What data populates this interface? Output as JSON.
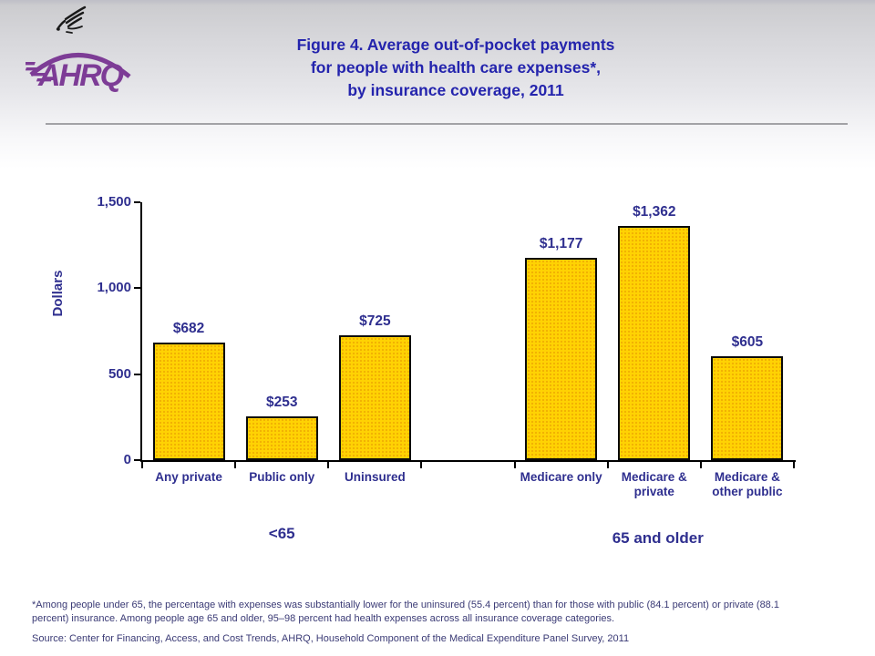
{
  "header": {
    "org_abbrev": "AHRQ",
    "title_lines": [
      "Figure 4. Average out-of-pocket payments",
      "for people with health care expenses*,",
      "by insurance coverage, 2011"
    ]
  },
  "chart_data": {
    "type": "bar",
    "title": "Figure 4. Average out-of-pocket payments for people with health care expenses*, by insurance coverage, 2011",
    "xlabel": "",
    "ylabel": "Dollars",
    "ylim": [
      0,
      1500
    ],
    "grid": false,
    "legend": false,
    "yticks": [
      {
        "value": 0,
        "label": "0"
      },
      {
        "value": 500,
        "label": "500"
      },
      {
        "value": 1000,
        "label": "1,000"
      },
      {
        "value": 1500,
        "label": "1,500"
      }
    ],
    "categories": [
      "Any private",
      "Public only",
      "Uninsured",
      "Medicare only",
      "Medicare & private",
      "Medicare & other public"
    ],
    "values": [
      682,
      253,
      725,
      1177,
      1362,
      605
    ],
    "bars": [
      {
        "slot": 0,
        "label_lines": [
          "Any private"
        ],
        "value": 682,
        "value_label": "$682"
      },
      {
        "slot": 1,
        "label_lines": [
          "Public only"
        ],
        "value": 253,
        "value_label": "$253"
      },
      {
        "slot": 2,
        "label_lines": [
          "Uninsured"
        ],
        "value": 725,
        "value_label": "$725"
      },
      {
        "slot": 4,
        "label_lines": [
          "Medicare only"
        ],
        "value": 1177,
        "value_label": "$1,177"
      },
      {
        "slot": 5,
        "label_lines": [
          "Medicare &",
          "private"
        ],
        "value": 1362,
        "value_label": "$1,362"
      },
      {
        "slot": 6,
        "label_lines": [
          "Medicare &",
          "other public"
        ],
        "value": 605,
        "value_label": "$605"
      }
    ],
    "groups": [
      {
        "label": "<65",
        "center_slot": 1
      },
      {
        "label": "65 and older",
        "center_slot": 5
      }
    ],
    "bar_color": "#FFD203",
    "bar_border_color": "#0A0A0A",
    "text_color": "#2F2F8F"
  },
  "footnotes": {
    "footnote": "*Among people under 65, the percentage with expenses was substantially lower for the uninsured (55.4 percent) than for those with public (84.1 percent) or private (88.1 percent) insurance. Among people age 65 and older, 95–98 percent had health expenses across all insurance coverage categories.",
    "source": "Source: Center for Financing, Access, and Cost Trends, AHRQ, Household Component of the Medical Expenditure Panel Survey,  2011"
  }
}
